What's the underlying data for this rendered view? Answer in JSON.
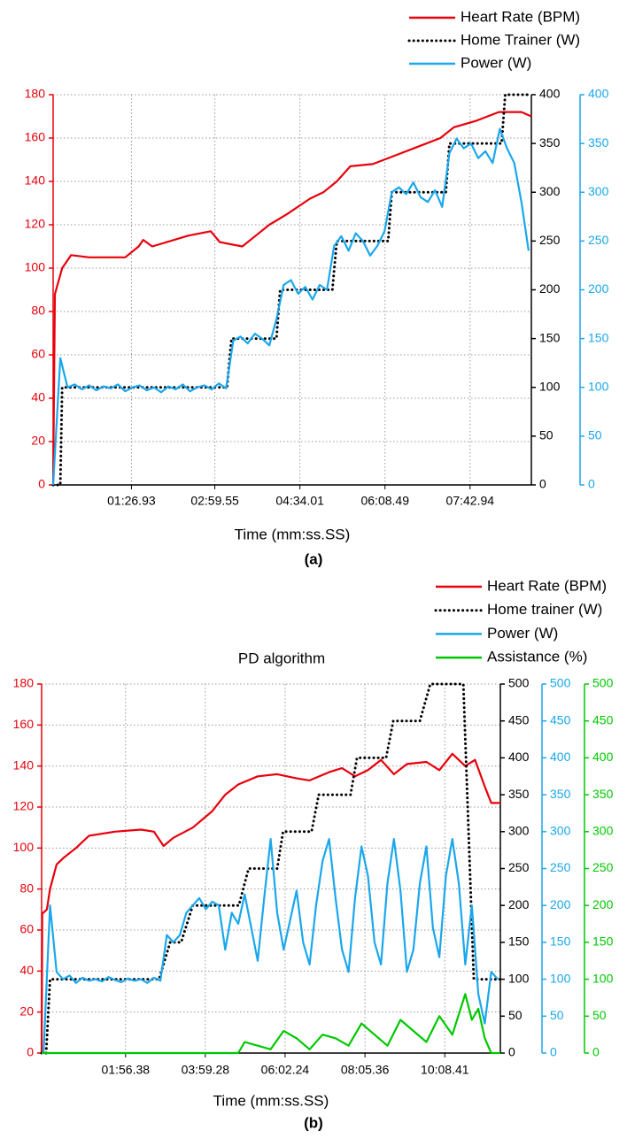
{
  "chart_data": [
    {
      "type": "line",
      "x_label": "Time (mm:ss.SS)",
      "caption": "(a)",
      "xlim": [
        0,
        531
      ],
      "xticks": [
        {
          "value": 86.93,
          "label": "01:26.93"
        },
        {
          "value": 179.55,
          "label": "02:59.55"
        },
        {
          "value": 274.01,
          "label": "04:34.01"
        },
        {
          "value": 368.49,
          "label": "06:08.49"
        },
        {
          "value": 462.94,
          "label": "07:42.94"
        }
      ],
      "ylim": [
        0,
        180
      ],
      "yticks": [
        0,
        20,
        40,
        60,
        80,
        100,
        120,
        140,
        160,
        180
      ],
      "y2lim": [
        0,
        400
      ],
      "y2ticks": [
        0,
        50,
        100,
        150,
        200,
        250,
        300,
        350,
        400
      ],
      "y3lim": [
        0,
        400
      ],
      "y3ticks": [
        0,
        50,
        100,
        150,
        200,
        250,
        300,
        350,
        400
      ],
      "axis_colors": {
        "y": "#e8000b",
        "y2": "#000000",
        "y3": "#1aa7ec"
      },
      "grid": true,
      "series": [
        {
          "name": "Heart Rate (BPM)",
          "color": "#e8000b",
          "axis": "y",
          "style": "solid",
          "x": [
            0,
            2,
            10,
            20,
            40,
            80,
            95,
            100,
            110,
            150,
            175,
            185,
            210,
            225,
            240,
            260,
            285,
            300,
            315,
            330,
            355,
            380,
            405,
            430,
            445,
            470,
            495,
            520,
            531
          ],
          "values": [
            0,
            88,
            100,
            106,
            105,
            105,
            110,
            113,
            110,
            115,
            117,
            112,
            110,
            115,
            120,
            125,
            132,
            135,
            140,
            147,
            148,
            152,
            156,
            160,
            165,
            168,
            172,
            172,
            170
          ]
        },
        {
          "name": "Home Trainer (W)",
          "color": "#000000",
          "axis": "y2",
          "style": "dotted",
          "x": [
            0,
            8,
            10,
            193,
            198,
            248,
            252,
            310,
            315,
            372,
            376,
            436,
            440,
            498,
            502,
            531
          ],
          "values": [
            0,
            0,
            100,
            100,
            150,
            150,
            200,
            200,
            250,
            250,
            300,
            300,
            350,
            350,
            400,
            400
          ]
        },
        {
          "name": "Power (W)",
          "color": "#1aa7ec",
          "axis": "y3",
          "style": "solid",
          "x": [
            0,
            8,
            16,
            24,
            32,
            40,
            48,
            56,
            64,
            72,
            80,
            88,
            96,
            104,
            112,
            120,
            128,
            136,
            144,
            152,
            160,
            168,
            176,
            184,
            192,
            200,
            208,
            216,
            224,
            232,
            240,
            248,
            256,
            264,
            272,
            280,
            288,
            296,
            304,
            312,
            320,
            328,
            336,
            344,
            352,
            360,
            368,
            376,
            384,
            392,
            400,
            408,
            416,
            424,
            432,
            440,
            448,
            456,
            464,
            472,
            480,
            488,
            496,
            504,
            512,
            520,
            528
          ],
          "values": [
            0,
            130,
            100,
            103,
            98,
            102,
            97,
            101,
            99,
            103,
            96,
            100,
            102,
            97,
            100,
            95,
            101,
            98,
            103,
            96,
            100,
            102,
            98,
            104,
            99,
            148,
            152,
            145,
            155,
            150,
            143,
            170,
            205,
            210,
            196,
            203,
            190,
            205,
            200,
            245,
            255,
            240,
            258,
            250,
            235,
            245,
            260,
            300,
            305,
            298,
            310,
            295,
            290,
            302,
            285,
            340,
            355,
            345,
            350,
            335,
            342,
            330,
            365,
            345,
            330,
            290,
            240
          ]
        }
      ]
    },
    {
      "type": "line",
      "title": "PD algorithm",
      "x_label": "Time (mm:ss.SS)",
      "caption": "(b)",
      "xlim": [
        -13,
        694
      ],
      "xticks": [
        {
          "value": 116.38,
          "label": "01:56.38"
        },
        {
          "value": 239.28,
          "label": "03:59.28"
        },
        {
          "value": 362.24,
          "label": "06:02.24"
        },
        {
          "value": 485.36,
          "label": "08:05.36"
        },
        {
          "value": 608.41,
          "label": "10:08.41"
        }
      ],
      "ylim": [
        0,
        180
      ],
      "yticks": [
        0,
        20,
        40,
        60,
        80,
        100,
        120,
        140,
        160,
        180
      ],
      "y2lim": [
        0,
        500
      ],
      "y2ticks": [
        0,
        50,
        100,
        150,
        200,
        250,
        300,
        350,
        400,
        450,
        500
      ],
      "y3lim": [
        0,
        500
      ],
      "y3ticks": [
        0,
        50,
        100,
        150,
        200,
        250,
        300,
        350,
        400,
        450,
        500
      ],
      "y4lim": [
        0,
        500
      ],
      "y4ticks": [
        0,
        50,
        100,
        150,
        200,
        250,
        300,
        350,
        400,
        450,
        500
      ],
      "axis_colors": {
        "y": "#e8000b",
        "y2": "#000000",
        "y3": "#1aa7ec",
        "y4": "#00c800"
      },
      "grid": true,
      "series": [
        {
          "name": "Heart Rate (BPM)",
          "color": "#e8000b",
          "axis": "y",
          "style": "solid",
          "x": [
            -13,
            -12,
            -5,
            0,
            10,
            20,
            40,
            60,
            100,
            140,
            160,
            175,
            190,
            220,
            250,
            270,
            290,
            320,
            350,
            380,
            400,
            430,
            450,
            470,
            490,
            510,
            530,
            550,
            580,
            600,
            620,
            640,
            655,
            670,
            680,
            694
          ],
          "values": [
            0,
            68,
            70,
            80,
            92,
            95,
            100,
            106,
            108,
            109,
            108,
            101,
            105,
            110,
            118,
            126,
            131,
            135,
            136,
            134,
            133,
            137,
            139,
            135,
            138,
            143,
            136,
            141,
            142,
            138,
            146,
            140,
            143,
            130,
            122,
            122
          ]
        },
        {
          "name": "Home trainer (W)",
          "color": "#000000",
          "axis": "y2",
          "style": "dotted",
          "x": [
            -13,
            -6,
            0,
            168,
            185,
            202,
            220,
            291,
            306,
            350,
            359,
            403,
            414,
            463,
            473,
            518,
            529,
            570,
            586,
            637,
            653,
            694
          ],
          "values": [
            0,
            0,
            100,
            100,
            150,
            150,
            200,
            200,
            250,
            250,
            300,
            300,
            350,
            350,
            400,
            400,
            450,
            450,
            500,
            500,
            100,
            100
          ]
        },
        {
          "name": "Power (W)",
          "color": "#1aa7ec",
          "axis": "y3",
          "style": "solid",
          "x": [
            -10,
            0,
            10,
            20,
            30,
            40,
            50,
            60,
            70,
            80,
            90,
            100,
            110,
            120,
            130,
            140,
            150,
            160,
            170,
            180,
            190,
            200,
            210,
            220,
            230,
            240,
            250,
            260,
            270,
            280,
            290,
            300,
            310,
            320,
            330,
            340,
            350,
            360,
            370,
            380,
            390,
            400,
            410,
            420,
            430,
            440,
            450,
            460,
            470,
            480,
            490,
            500,
            510,
            520,
            530,
            540,
            550,
            560,
            570,
            580,
            590,
            600,
            610,
            620,
            630,
            640,
            650,
            660,
            670,
            680,
            690
          ],
          "values": [
            0,
            200,
            110,
            100,
            105,
            95,
            102,
            98,
            100,
            97,
            103,
            99,
            96,
            101,
            98,
            100,
            95,
            102,
            98,
            160,
            150,
            160,
            190,
            200,
            210,
            195,
            205,
            200,
            140,
            190,
            175,
            215,
            170,
            125,
            210,
            290,
            190,
            140,
            180,
            220,
            150,
            120,
            200,
            260,
            290,
            210,
            140,
            110,
            210,
            280,
            240,
            150,
            120,
            230,
            290,
            220,
            110,
            140,
            230,
            280,
            170,
            130,
            240,
            290,
            230,
            120,
            200,
            80,
            40,
            110,
            100
          ]
        },
        {
          "name": "Assistance (%)",
          "color": "#00c800",
          "axis": "y4",
          "style": "solid",
          "x": [
            -13,
            290,
            300,
            320,
            340,
            360,
            380,
            400,
            420,
            440,
            460,
            480,
            500,
            520,
            540,
            560,
            580,
            600,
            620,
            640,
            650,
            660,
            670,
            680,
            694
          ],
          "values": [
            0,
            0,
            15,
            10,
            5,
            30,
            20,
            5,
            25,
            20,
            10,
            40,
            25,
            10,
            45,
            30,
            15,
            50,
            25,
            80,
            45,
            60,
            20,
            0,
            0
          ]
        }
      ]
    }
  ]
}
